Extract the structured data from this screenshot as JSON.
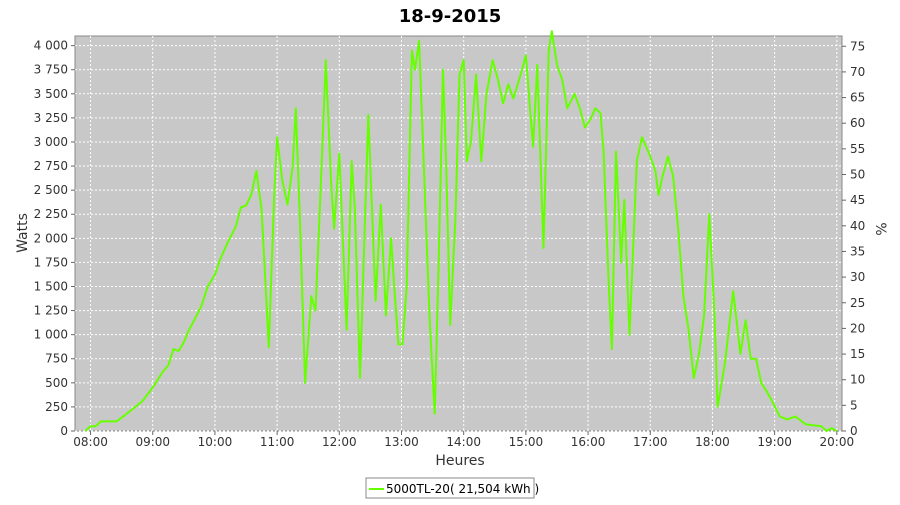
{
  "chart_data": {
    "type": "line",
    "title": "18-9-2015",
    "xlabel": "Heures",
    "ylabel": "Watts",
    "y2label": "%",
    "legend_text": "5000TL-20( 21,504 kWh )",
    "legend_position": "bottom",
    "grid": true,
    "ylim": [
      0,
      4100
    ],
    "y2lim": [
      0,
      77
    ],
    "xlim": [
      "07:45",
      "20:05"
    ],
    "y_ticks": [
      0,
      250,
      500,
      750,
      1000,
      1250,
      1500,
      1750,
      2000,
      2250,
      2500,
      2750,
      3000,
      3250,
      3500,
      3750,
      4000
    ],
    "y_tick_labels": [
      "0",
      "250",
      "500",
      "750",
      "1 000",
      "1 250",
      "1 500",
      "1 750",
      "2 000",
      "2 250",
      "2 500",
      "2 750",
      "3 000",
      "3 250",
      "3 500",
      "3 750",
      "4 000"
    ],
    "y2_ticks": [
      0,
      5,
      10,
      15,
      20,
      25,
      30,
      35,
      40,
      45,
      50,
      55,
      60,
      65,
      70,
      75
    ],
    "y2_tick_labels": [
      "0",
      "5",
      "10",
      "15",
      "20",
      "25",
      "30",
      "35",
      "40",
      "45",
      "50",
      "55",
      "60",
      "65",
      "70",
      "75"
    ],
    "x_ticks": [
      "08:00",
      "09:00",
      "10:00",
      "11:00",
      "12:00",
      "13:00",
      "14:00",
      "15:00",
      "16:00",
      "17:00",
      "18:00",
      "19:00",
      "20:00"
    ],
    "colors": {
      "series": "#66ff00",
      "plot_background": "#c8c8c8",
      "grid": "#ffffff"
    },
    "series": [
      {
        "name": "5000TL-20( 21,504 kWh )",
        "points": [
          [
            "07:55",
            0
          ],
          [
            "08:00",
            50
          ],
          [
            "08:05",
            50
          ],
          [
            "08:10",
            100
          ],
          [
            "08:25",
            100
          ],
          [
            "08:35",
            180
          ],
          [
            "08:50",
            310
          ],
          [
            "09:00",
            450
          ],
          [
            "09:10",
            620
          ],
          [
            "09:15",
            680
          ],
          [
            "09:20",
            850
          ],
          [
            "09:25",
            830
          ],
          [
            "09:30",
            920
          ],
          [
            "09:35",
            1050
          ],
          [
            "09:40",
            1150
          ],
          [
            "09:47",
            1300
          ],
          [
            "09:53",
            1500
          ],
          [
            "10:00",
            1620
          ],
          [
            "10:05",
            1780
          ],
          [
            "10:12",
            1950
          ],
          [
            "10:20",
            2120
          ],
          [
            "10:25",
            2320
          ],
          [
            "10:30",
            2340
          ],
          [
            "10:35",
            2450
          ],
          [
            "10:40",
            2700
          ],
          [
            "10:45",
            2300
          ],
          [
            "10:52",
            870
          ],
          [
            "10:57",
            2400
          ],
          [
            "11:00",
            3050
          ],
          [
            "11:05",
            2600
          ],
          [
            "11:10",
            2350
          ],
          [
            "11:15",
            2750
          ],
          [
            "11:18",
            3350
          ],
          [
            "11:22",
            2200
          ],
          [
            "11:27",
            500
          ],
          [
            "11:33",
            1400
          ],
          [
            "11:37",
            1250
          ],
          [
            "11:42",
            2500
          ],
          [
            "11:47",
            3850
          ],
          [
            "11:52",
            2600
          ],
          [
            "11:55",
            2100
          ],
          [
            "12:00",
            2880
          ],
          [
            "12:07",
            1050
          ],
          [
            "12:12",
            2800
          ],
          [
            "12:15",
            2300
          ],
          [
            "12:20",
            550
          ],
          [
            "12:28",
            3280
          ],
          [
            "12:35",
            1350
          ],
          [
            "12:40",
            2350
          ],
          [
            "12:45",
            1200
          ],
          [
            "12:50",
            2000
          ],
          [
            "12:53",
            1500
          ],
          [
            "12:57",
            900
          ],
          [
            "13:01",
            900
          ],
          [
            "13:05",
            1500
          ],
          [
            "13:10",
            3950
          ],
          [
            "13:13",
            3750
          ],
          [
            "13:17",
            4050
          ],
          [
            "13:20",
            3200
          ],
          [
            "13:27",
            1200
          ],
          [
            "13:32",
            180
          ],
          [
            "13:36",
            1800
          ],
          [
            "13:40",
            3750
          ],
          [
            "13:43",
            2800
          ],
          [
            "13:47",
            1100
          ],
          [
            "13:52",
            2200
          ],
          [
            "13:56",
            3700
          ],
          [
            "14:00",
            3850
          ],
          [
            "14:03",
            2800
          ],
          [
            "14:07",
            3000
          ],
          [
            "14:12",
            3700
          ],
          [
            "14:17",
            2800
          ],
          [
            "14:22",
            3500
          ],
          [
            "14:28",
            3850
          ],
          [
            "14:33",
            3650
          ],
          [
            "14:38",
            3400
          ],
          [
            "14:43",
            3600
          ],
          [
            "14:48",
            3450
          ],
          [
            "14:55",
            3700
          ],
          [
            "15:00",
            3900
          ],
          [
            "15:04",
            3350
          ],
          [
            "15:07",
            2950
          ],
          [
            "15:11",
            3800
          ],
          [
            "15:17",
            1900
          ],
          [
            "15:22",
            3950
          ],
          [
            "15:25",
            4150
          ],
          [
            "15:30",
            3800
          ],
          [
            "15:35",
            3650
          ],
          [
            "15:40",
            3350
          ],
          [
            "15:47",
            3500
          ],
          [
            "15:52",
            3350
          ],
          [
            "15:57",
            3150
          ],
          [
            "16:03",
            3250
          ],
          [
            "16:07",
            3350
          ],
          [
            "16:12",
            3300
          ],
          [
            "16:15",
            2900
          ],
          [
            "16:20",
            1500
          ],
          [
            "16:23",
            850
          ],
          [
            "16:27",
            2900
          ],
          [
            "16:32",
            1750
          ],
          [
            "16:35",
            2400
          ],
          [
            "16:40",
            1000
          ],
          [
            "16:47",
            2800
          ],
          [
            "16:52",
            3050
          ],
          [
            "17:00",
            2850
          ],
          [
            "17:05",
            2700
          ],
          [
            "17:08",
            2450
          ],
          [
            "17:12",
            2650
          ],
          [
            "17:17",
            2850
          ],
          [
            "17:22",
            2650
          ],
          [
            "17:27",
            2100
          ],
          [
            "17:32",
            1400
          ],
          [
            "17:37",
            1050
          ],
          [
            "17:42",
            550
          ],
          [
            "17:47",
            800
          ],
          [
            "17:52",
            1200
          ],
          [
            "17:57",
            2250
          ],
          [
            "18:02",
            1200
          ],
          [
            "18:05",
            250
          ],
          [
            "18:12",
            700
          ],
          [
            "18:20",
            1450
          ],
          [
            "18:27",
            800
          ],
          [
            "18:32",
            1150
          ],
          [
            "18:37",
            750
          ],
          [
            "18:42",
            750
          ],
          [
            "18:47",
            500
          ],
          [
            "18:53",
            400
          ],
          [
            "18:58",
            300
          ],
          [
            "19:05",
            150
          ],
          [
            "19:12",
            120
          ],
          [
            "19:20",
            150
          ],
          [
            "19:30",
            70
          ],
          [
            "19:37",
            60
          ],
          [
            "19:45",
            50
          ],
          [
            "19:50",
            0
          ],
          [
            "19:55",
            30
          ],
          [
            "20:00",
            0
          ]
        ]
      }
    ]
  }
}
